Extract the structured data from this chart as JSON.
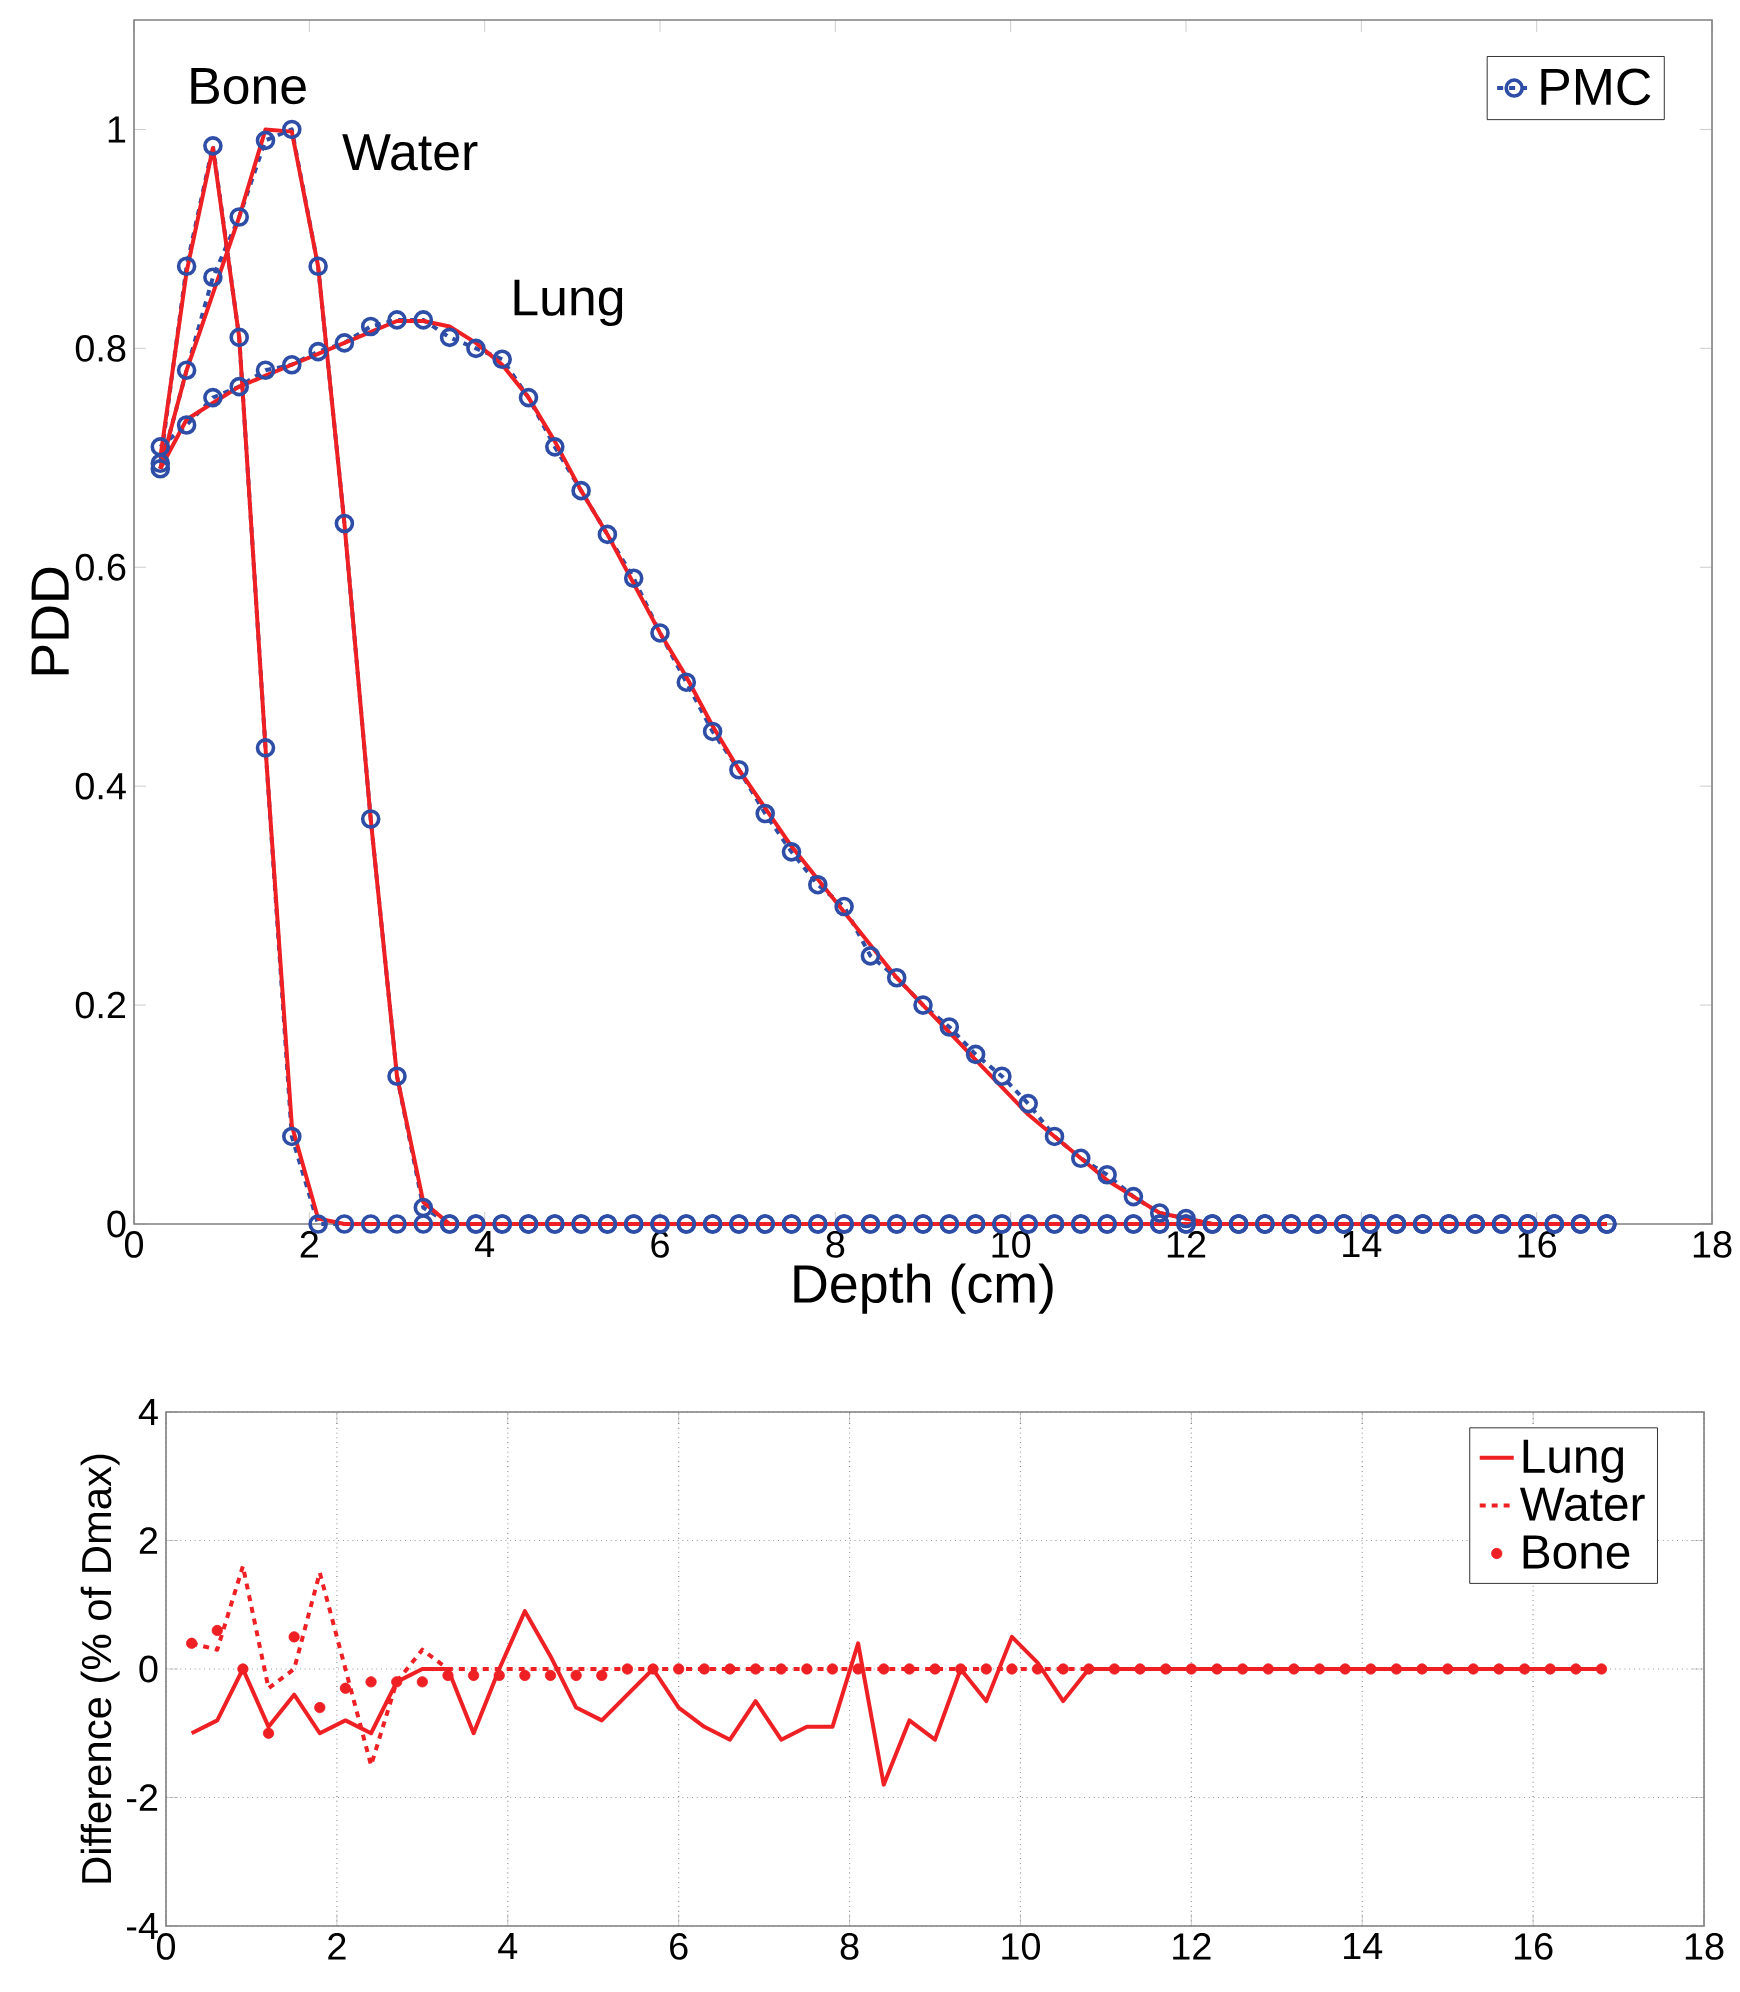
{
  "chart_data": [
    {
      "type": "line",
      "xlabel": "Depth (cm)",
      "ylabel": "PDD",
      "x": [
        0.3,
        0.6,
        0.9,
        1.2,
        1.5,
        1.8,
        2.1,
        2.4,
        2.7,
        3.0,
        3.3,
        3.6,
        3.9,
        4.2,
        4.5,
        4.8,
        5.1,
        5.4,
        5.7,
        6.0,
        6.3,
        6.6,
        6.9,
        7.2,
        7.5,
        7.8,
        8.1,
        8.4,
        8.7,
        9.0,
        9.3,
        9.6,
        9.9,
        10.2,
        10.5,
        10.8,
        11.1,
        11.4,
        11.7,
        12.0,
        12.3,
        12.6,
        12.9,
        13.2,
        13.5,
        13.8,
        14.1,
        14.4,
        14.7,
        15.0,
        15.3,
        15.6,
        15.9,
        16.2,
        16.5,
        16.8
      ],
      "series": [
        {
          "name": "PMC",
          "color": "#2e4da6",
          "marker": "circle",
          "line_style": "dashed",
          "values": [
            0.71,
            0.73,
            0.755,
            0.765,
            0.78,
            0.785,
            0.797,
            0.805,
            0.82,
            0.826,
            0.826,
            0.81,
            0.8,
            0.79,
            0.755,
            0.71,
            0.67,
            0.63,
            0.59,
            0.54,
            0.495,
            0.45,
            0.415,
            0.375,
            0.34,
            0.31,
            0.29,
            0.245,
            0.225,
            0.2,
            0.18,
            0.155,
            0.135,
            0.11,
            0.08,
            0.06,
            0.045,
            0.025,
            0.01,
            0.005,
            0,
            0,
            0,
            0,
            0,
            0,
            0,
            0,
            0,
            0,
            0,
            0,
            0,
            0,
            0,
            0
          ]
        },
        {
          "color": "#2e4da6",
          "marker": "circle",
          "line_style": "dashed",
          "values": [
            0.69,
            0.78,
            0.865,
            0.92,
            0.99,
            1.0,
            0.875,
            0.64,
            0.37,
            0.135,
            0.015,
            0,
            0,
            0,
            0,
            0,
            0,
            0,
            0,
            0,
            0,
            0,
            0,
            0,
            0,
            0,
            0,
            0,
            0,
            0,
            0,
            0,
            0,
            0,
            0,
            0,
            0,
            0,
            0,
            0,
            0,
            0,
            0,
            0,
            0,
            0,
            0,
            0,
            0,
            0,
            0,
            0,
            0,
            0,
            0,
            0
          ]
        },
        {
          "color": "#2e4da6",
          "marker": "circle",
          "line_style": "dashed",
          "values": [
            0.695,
            0.875,
            0.985,
            0.81,
            0.435,
            0.08,
            0,
            0,
            0,
            0,
            0,
            0,
            0,
            0,
            0,
            0,
            0,
            0,
            0,
            0,
            0,
            0,
            0,
            0,
            0,
            0,
            0,
            0,
            0,
            0,
            0,
            0,
            0,
            0,
            0,
            0,
            0,
            0,
            0,
            0,
            0,
            0,
            0,
            0,
            0,
            0,
            0,
            0,
            0,
            0,
            0,
            0,
            0,
            0,
            0,
            0
          ]
        },
        {
          "color": "#ee2024",
          "line_style": "solid",
          "values": [
            0.69,
            0.735,
            0.75,
            0.765,
            0.775,
            0.785,
            0.795,
            0.805,
            0.815,
            0.825,
            0.825,
            0.82,
            0.805,
            0.785,
            0.755,
            0.715,
            0.67,
            0.63,
            0.585,
            0.54,
            0.5,
            0.455,
            0.415,
            0.38,
            0.345,
            0.315,
            0.285,
            0.255,
            0.225,
            0.2,
            0.175,
            0.15,
            0.125,
            0.1,
            0.08,
            0.06,
            0.04,
            0.025,
            0.01,
            0.005,
            0,
            0,
            0,
            0,
            0,
            0,
            0,
            0,
            0,
            0,
            0,
            0,
            0,
            0,
            0,
            0
          ]
        },
        {
          "color": "#ee2024",
          "line_style": "solid",
          "values": [
            0.69,
            0.78,
            0.85,
            0.92,
            1.0,
            0.998,
            0.875,
            0.64,
            0.37,
            0.135,
            0.02,
            0,
            0,
            0,
            0,
            0,
            0,
            0,
            0,
            0,
            0,
            0,
            0,
            0,
            0,
            0,
            0,
            0,
            0,
            0,
            0,
            0,
            0,
            0,
            0,
            0,
            0,
            0,
            0,
            0,
            0,
            0,
            0,
            0,
            0,
            0,
            0,
            0,
            0,
            0,
            0,
            0,
            0,
            0,
            0,
            0
          ]
        },
        {
          "color": "#ee2024",
          "line_style": "solid",
          "values": [
            0.7,
            0.87,
            0.983,
            0.81,
            0.435,
            0.09,
            0.005,
            0,
            0,
            0,
            0,
            0,
            0,
            0,
            0,
            0,
            0,
            0,
            0,
            0,
            0,
            0,
            0,
            0,
            0,
            0,
            0,
            0,
            0,
            0,
            0,
            0,
            0,
            0,
            0,
            0,
            0,
            0,
            0,
            0,
            0,
            0,
            0,
            0,
            0,
            0,
            0,
            0,
            0,
            0,
            0,
            0,
            0,
            0,
            0,
            0
          ]
        }
      ],
      "annotations": [
        "Bone",
        "Water",
        "Lung"
      ],
      "xlim": [
        0,
        18
      ],
      "ylim": [
        0,
        1.1
      ],
      "xticks": [
        0,
        2,
        4,
        6,
        8,
        10,
        12,
        14,
        16,
        18
      ],
      "yticks": [
        0,
        0.2,
        0.4,
        0.6,
        0.8,
        1
      ],
      "grid": false,
      "legend": "top right"
    },
    {
      "type": "line",
      "ylabel": "Difference (% of Dmax)",
      "x": [
        0.3,
        0.6,
        0.9,
        1.2,
        1.5,
        1.8,
        2.1,
        2.4,
        2.7,
        3.0,
        3.3,
        3.6,
        3.9,
        4.2,
        4.5,
        4.8,
        5.1,
        5.4,
        5.7,
        6.0,
        6.3,
        6.6,
        6.9,
        7.2,
        7.5,
        7.8,
        8.1,
        8.4,
        8.7,
        9.0,
        9.3,
        9.6,
        9.9,
        10.2,
        10.5,
        10.8,
        11.1,
        11.4,
        11.7,
        12.0,
        12.3,
        12.6,
        12.9,
        13.2,
        13.5,
        13.8,
        14.1,
        14.4,
        14.7,
        15.0,
        15.3,
        15.6,
        15.9,
        16.2,
        16.5,
        16.8
      ],
      "series": [
        {
          "name": "Lung",
          "color": "#ee2024",
          "line_style": "solid",
          "values": [
            -1.0,
            -0.8,
            0.0,
            -0.9,
            -0.4,
            -1.0,
            -0.8,
            -1.0,
            -0.2,
            0.0,
            0.0,
            -1.0,
            0.0,
            0.9,
            0.2,
            -0.6,
            -0.8,
            -0.4,
            0.0,
            -0.6,
            -0.9,
            -1.1,
            -0.5,
            -1.1,
            -0.9,
            -0.9,
            0.4,
            -1.8,
            -0.8,
            -1.1,
            0.0,
            -0.5,
            0.5,
            0.1,
            -0.5,
            0.0,
            0,
            0,
            0,
            0,
            0,
            0,
            0,
            0,
            0,
            0,
            0,
            0,
            0,
            0,
            0,
            0,
            0,
            0,
            0,
            0
          ]
        },
        {
          "name": "Water",
          "color": "#ee2024",
          "line_style": "dashed",
          "values": [
            0.4,
            0.3,
            1.6,
            -0.3,
            0.0,
            1.5,
            0.0,
            -1.5,
            -0.2,
            0.3,
            0.0,
            0,
            0,
            0,
            0,
            0,
            0,
            0,
            0,
            0,
            0,
            0,
            0,
            0,
            0,
            0,
            0,
            0,
            0,
            0,
            0,
            0,
            0,
            0,
            0,
            0,
            0,
            0,
            0,
            0,
            0,
            0,
            0,
            0,
            0,
            0,
            0,
            0,
            0,
            0,
            0,
            0,
            0,
            0,
            0,
            0
          ]
        },
        {
          "name": "Bone",
          "color": "#ee2024",
          "type": "scatter",
          "marker": "circle",
          "values": [
            0.4,
            0.6,
            0.0,
            -1.0,
            0.5,
            -0.6,
            -0.3,
            -0.2,
            -0.2,
            -0.2,
            -0.1,
            -0.1,
            -0.1,
            -0.1,
            -0.1,
            -0.1,
            -0.1,
            0,
            0,
            0,
            0,
            0,
            0,
            0,
            0,
            0,
            0,
            0,
            0,
            0,
            0,
            0,
            0,
            0,
            0,
            0,
            0,
            0,
            0,
            0,
            0,
            0,
            0,
            0,
            0,
            0,
            0,
            0,
            0,
            0,
            0,
            0,
            0,
            0,
            0,
            0
          ]
        }
      ],
      "xlim": [
        0,
        18
      ],
      "ylim": [
        -4,
        4
      ],
      "xticks": [
        0,
        2,
        4,
        6,
        8,
        10,
        12,
        14,
        16,
        18
      ],
      "yticks": [
        -4,
        -2,
        0,
        2,
        4
      ],
      "grid": true,
      "legend": "top right"
    }
  ]
}
